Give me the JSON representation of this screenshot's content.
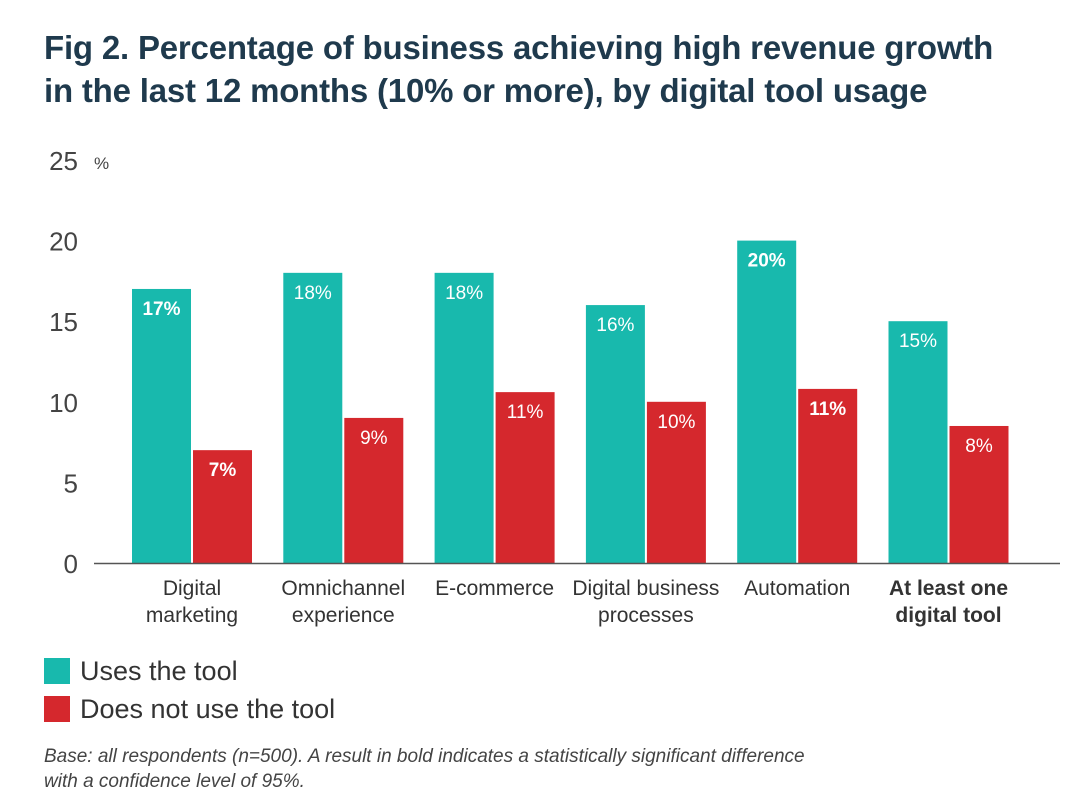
{
  "title": {
    "line1": "Fig 2. Percentage of business achieving high revenue growth",
    "line2": "in the last 12 months (10% or more), by digital tool usage"
  },
  "chart_data": {
    "type": "bar",
    "ylabel": "%",
    "ylim": [
      0,
      25
    ],
    "yticks": [
      "0",
      "5",
      "10",
      "15",
      "20",
      "25"
    ],
    "grid": false,
    "categories": [
      {
        "lines": [
          "Digital",
          "marketing"
        ],
        "bold": false
      },
      {
        "lines": [
          "Omnichannel",
          "experience"
        ],
        "bold": false
      },
      {
        "lines": [
          "E-commerce"
        ],
        "bold": false
      },
      {
        "lines": [
          "Digital business",
          "processes"
        ],
        "bold": false
      },
      {
        "lines": [
          "Automation"
        ],
        "bold": false
      },
      {
        "lines": [
          "At least one",
          "digital tool"
        ],
        "bold": true
      }
    ],
    "series": [
      {
        "name": "Uses the tool",
        "color": "#18b9ad",
        "values": [
          17,
          18,
          18,
          16,
          20,
          15
        ],
        "labels": [
          "17%",
          "18%",
          "18%",
          "16%",
          "20%",
          "15%"
        ],
        "bold": [
          true,
          false,
          false,
          false,
          true,
          false
        ]
      },
      {
        "name": "Does not use the tool",
        "color": "#d5282d",
        "values": [
          7,
          9,
          10.6,
          10,
          10.8,
          8.5
        ],
        "labels": [
          "7%",
          "9%",
          "11%",
          "10%",
          "11%",
          "8%"
        ],
        "bold": [
          true,
          false,
          false,
          false,
          true,
          false
        ]
      }
    ],
    "legend_position": "bottom-left"
  },
  "footnote": {
    "line1": "Base: all respondents (n=500). A result in bold indicates a statistically significant difference",
    "line2": "with a confidence level of 95%."
  }
}
